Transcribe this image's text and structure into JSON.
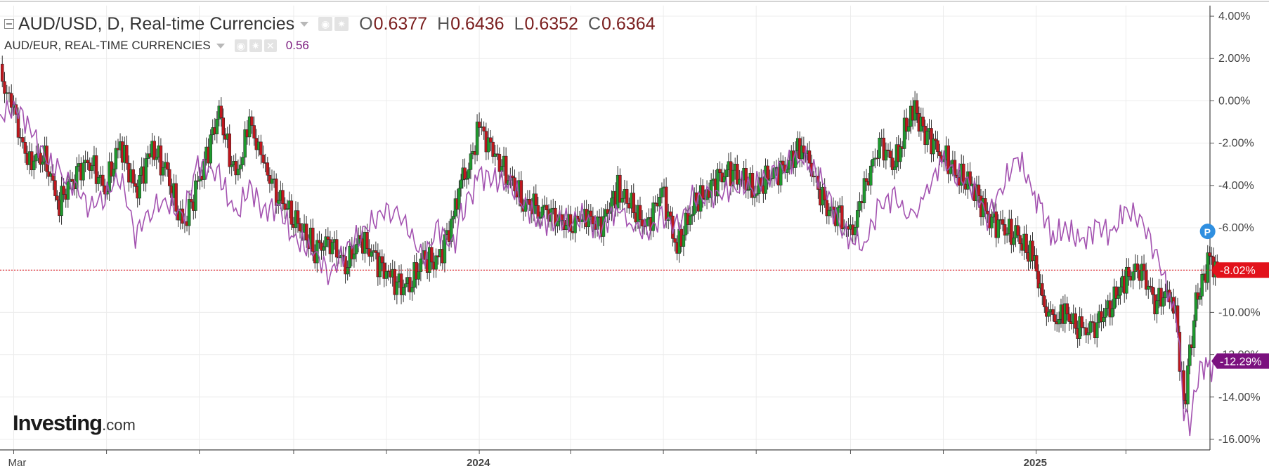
{
  "legend": {
    "main_title": "AUD/USD, D, Real-time Currencies",
    "main_ohlc": [
      {
        "k": "O",
        "v": "0.6377"
      },
      {
        "k": "H",
        "v": "0.6436"
      },
      {
        "k": "L",
        "v": "0.6352"
      },
      {
        "k": "C",
        "v": "0.6364"
      }
    ],
    "compare_title": "AUD/EUR, REAL-TIME CURRENCIES",
    "compare_value": "0.56"
  },
  "logo": {
    "brand": "Investing",
    "suffix": ".com"
  },
  "badges": {
    "price_flag": "P",
    "main_last": "-8.02%",
    "compare_last": "-12.29%"
  },
  "colors": {
    "up": "#1e9a2e",
    "down": "#c0171e",
    "compare_line": "#a352b0",
    "last_main_bg": "#e2121b",
    "last_compare_bg": "#7b117f",
    "flag": "#2f8fe0",
    "grid": "#ececec"
  },
  "chart_data": {
    "type": "candlestick",
    "y_unit": "% change",
    "ylim": [
      -16.5,
      4.5
    ],
    "y_ticks": [
      "4.00%",
      "2.00%",
      "0.00%",
      "-2.00%",
      "-4.00%",
      "-6.00%",
      "-8.00%",
      "-10.00%",
      "-12.00%",
      "-14.00%",
      "-16.00%"
    ],
    "y_tick_values": [
      4,
      2,
      0,
      -2,
      -4,
      -6,
      -8,
      -10,
      -12,
      -14,
      -16
    ],
    "x_range": [
      "2023-02-20",
      "2025-04-16"
    ],
    "x_labels": [
      {
        "date": "2023-03-01",
        "text": "Mar",
        "bold": false
      },
      {
        "date": "2024-01-01",
        "text": "2024",
        "bold": true
      },
      {
        "date": "2025-01-01",
        "text": "2025",
        "bold": true
      }
    ],
    "x_minor_ticks": [
      "2023-05-01",
      "2023-07-01",
      "2023-09-01",
      "2023-11-01",
      "2024-03-01",
      "2024-05-01",
      "2024-07-01",
      "2024-09-01",
      "2024-11-01",
      "2025-03-01"
    ],
    "grid": true,
    "series": [
      {
        "name": "AUD/USD",
        "style": "candles",
        "points": [
          [
            "2023-02-20",
            1.2
          ],
          [
            "2023-03-01",
            -0.5
          ],
          [
            "2023-03-10",
            -3.0
          ],
          [
            "2023-03-20",
            -2.5
          ],
          [
            "2023-03-31",
            -4.8
          ],
          [
            "2023-04-10",
            -3.5
          ],
          [
            "2023-04-20",
            -2.8
          ],
          [
            "2023-04-30",
            -4.2
          ],
          [
            "2023-05-10",
            -2.0
          ],
          [
            "2023-05-20",
            -4.3
          ],
          [
            "2023-05-31",
            -2.2
          ],
          [
            "2023-06-10",
            -3.5
          ],
          [
            "2023-06-20",
            -6.0
          ],
          [
            "2023-06-30",
            -4.0
          ],
          [
            "2023-07-14",
            -0.5
          ],
          [
            "2023-07-25",
            -3.8
          ],
          [
            "2023-08-03",
            -1.0
          ],
          [
            "2023-08-12",
            -3.0
          ],
          [
            "2023-08-22",
            -4.5
          ],
          [
            "2023-09-01",
            -5.5
          ],
          [
            "2023-09-15",
            -7.0
          ],
          [
            "2023-09-25",
            -6.6
          ],
          [
            "2023-10-05",
            -7.8
          ],
          [
            "2023-10-15",
            -6.5
          ],
          [
            "2023-10-25",
            -7.5
          ],
          [
            "2023-11-05",
            -8.5
          ],
          [
            "2023-11-15",
            -8.9
          ],
          [
            "2023-11-25",
            -7.5
          ],
          [
            "2023-12-05",
            -7.6
          ],
          [
            "2023-12-15",
            -5.5
          ],
          [
            "2023-12-20",
            -3.7
          ],
          [
            "2023-12-25",
            -3.2
          ],
          [
            "2024-01-01",
            -1.2
          ],
          [
            "2024-01-10",
            -2.5
          ],
          [
            "2024-01-20",
            -3.5
          ],
          [
            "2024-01-30",
            -4.8
          ],
          [
            "2024-02-10",
            -5.0
          ],
          [
            "2024-02-20",
            -5.5
          ],
          [
            "2024-03-01",
            -6.0
          ],
          [
            "2024-03-10",
            -5.3
          ],
          [
            "2024-03-20",
            -6.0
          ],
          [
            "2024-04-01",
            -4.2
          ],
          [
            "2024-04-10",
            -5.0
          ],
          [
            "2024-04-20",
            -6.0
          ],
          [
            "2024-04-30",
            -4.2
          ],
          [
            "2024-05-10",
            -7.0
          ],
          [
            "2024-05-20",
            -5.0
          ],
          [
            "2024-05-31",
            -4.2
          ],
          [
            "2024-06-10",
            -3.3
          ],
          [
            "2024-06-20",
            -3.5
          ],
          [
            "2024-06-30",
            -4.3
          ],
          [
            "2024-07-10",
            -3.5
          ],
          [
            "2024-07-20",
            -3.2
          ],
          [
            "2024-07-31",
            -2.0
          ],
          [
            "2024-08-05",
            -3.0
          ],
          [
            "2024-08-15",
            -5.0
          ],
          [
            "2024-08-25",
            -5.5
          ],
          [
            "2024-09-01",
            -6.5
          ],
          [
            "2024-09-10",
            -4.2
          ],
          [
            "2024-09-20",
            -2.0
          ],
          [
            "2024-09-30",
            -3.0
          ],
          [
            "2024-10-05",
            -1.8
          ],
          [
            "2024-10-12",
            -0.3
          ],
          [
            "2024-10-20",
            -1.5
          ],
          [
            "2024-10-31",
            -2.5
          ],
          [
            "2024-11-10",
            -3.5
          ],
          [
            "2024-11-20",
            -4.0
          ],
          [
            "2024-11-30",
            -5.5
          ],
          [
            "2024-12-10",
            -6.0
          ],
          [
            "2024-12-20",
            -6.5
          ],
          [
            "2024-12-31",
            -7.5
          ],
          [
            "2025-01-05",
            -9.5
          ],
          [
            "2025-01-12",
            -10.5
          ],
          [
            "2025-01-20",
            -10.0
          ],
          [
            "2025-01-31",
            -11.0
          ],
          [
            "2025-02-10",
            -10.5
          ],
          [
            "2025-02-20",
            -9.5
          ],
          [
            "2025-02-28",
            -8.5
          ],
          [
            "2025-03-10",
            -7.8
          ],
          [
            "2025-03-20",
            -9.5
          ],
          [
            "2025-03-31",
            -9.0
          ],
          [
            "2025-04-04",
            -11.0
          ],
          [
            "2025-04-08",
            -14.5
          ],
          [
            "2025-04-12",
            -12.0
          ],
          [
            "2025-04-16",
            -9.5
          ],
          [
            "2025-04-20",
            -8.5
          ],
          [
            "2025-04-25",
            -7.5
          ],
          [
            "2025-04-30",
            -8.0
          ]
        ]
      },
      {
        "name": "AUD/EUR",
        "style": "line",
        "points": [
          [
            "2023-02-20",
            -0.8
          ],
          [
            "2023-03-01",
            -0.2
          ],
          [
            "2023-03-10",
            -1.0
          ],
          [
            "2023-03-20",
            -2.5
          ],
          [
            "2023-03-31",
            -3.5
          ],
          [
            "2023-04-10",
            -4.0
          ],
          [
            "2023-04-20",
            -5.0
          ],
          [
            "2023-04-30",
            -4.5
          ],
          [
            "2023-05-10",
            -3.5
          ],
          [
            "2023-05-20",
            -6.3
          ],
          [
            "2023-05-31",
            -5.0
          ],
          [
            "2023-06-10",
            -4.8
          ],
          [
            "2023-06-20",
            -5.5
          ],
          [
            "2023-06-30",
            -3.0
          ],
          [
            "2023-07-14",
            -3.5
          ],
          [
            "2023-07-25",
            -5.5
          ],
          [
            "2023-08-03",
            -4.0
          ],
          [
            "2023-08-12",
            -5.2
          ],
          [
            "2023-08-22",
            -5.0
          ],
          [
            "2023-09-01",
            -6.5
          ],
          [
            "2023-09-15",
            -7.2
          ],
          [
            "2023-09-25",
            -8.2
          ],
          [
            "2023-10-05",
            -7.0
          ],
          [
            "2023-10-15",
            -6.3
          ],
          [
            "2023-10-25",
            -5.5
          ],
          [
            "2023-11-05",
            -5.0
          ],
          [
            "2023-11-15",
            -6.0
          ],
          [
            "2023-11-25",
            -7.5
          ],
          [
            "2023-12-05",
            -6.0
          ],
          [
            "2023-12-15",
            -7.0
          ],
          [
            "2023-12-20",
            -5.5
          ],
          [
            "2023-12-25",
            -4.8
          ],
          [
            "2024-01-01",
            -3.5
          ],
          [
            "2024-01-10",
            -3.7
          ],
          [
            "2024-01-20",
            -3.9
          ],
          [
            "2024-01-30",
            -4.8
          ],
          [
            "2024-02-10",
            -5.8
          ],
          [
            "2024-02-20",
            -5.6
          ],
          [
            "2024-03-01",
            -5.7
          ],
          [
            "2024-03-10",
            -5.5
          ],
          [
            "2024-03-20",
            -6.2
          ],
          [
            "2024-04-01",
            -5.0
          ],
          [
            "2024-04-10",
            -5.8
          ],
          [
            "2024-04-20",
            -6.3
          ],
          [
            "2024-04-30",
            -5.5
          ],
          [
            "2024-05-10",
            -6.0
          ],
          [
            "2024-05-20",
            -4.6
          ],
          [
            "2024-05-31",
            -4.6
          ],
          [
            "2024-06-10",
            -4.3
          ],
          [
            "2024-06-20",
            -4.0
          ],
          [
            "2024-06-30",
            -4.0
          ],
          [
            "2024-07-10",
            -3.5
          ],
          [
            "2024-07-20",
            -3.0
          ],
          [
            "2024-07-31",
            -2.6
          ],
          [
            "2024-08-05",
            -3.0
          ],
          [
            "2024-08-15",
            -4.0
          ],
          [
            "2024-08-25",
            -6.0
          ],
          [
            "2024-09-01",
            -6.5
          ],
          [
            "2024-09-10",
            -6.8
          ],
          [
            "2024-09-20",
            -5.0
          ],
          [
            "2024-09-30",
            -4.5
          ],
          [
            "2024-10-05",
            -5.2
          ],
          [
            "2024-10-12",
            -5.6
          ],
          [
            "2024-10-20",
            -4.5
          ],
          [
            "2024-10-31",
            -2.8
          ],
          [
            "2024-11-10",
            -3.5
          ],
          [
            "2024-11-20",
            -4.0
          ],
          [
            "2024-11-30",
            -5.5
          ],
          [
            "2024-12-10",
            -4.0
          ],
          [
            "2024-12-20",
            -2.6
          ],
          [
            "2024-12-31",
            -4.5
          ],
          [
            "2025-01-05",
            -5.2
          ],
          [
            "2025-01-12",
            -6.5
          ],
          [
            "2025-01-20",
            -6.0
          ],
          [
            "2025-01-31",
            -6.7
          ],
          [
            "2025-02-10",
            -5.9
          ],
          [
            "2025-02-20",
            -6.3
          ],
          [
            "2025-02-28",
            -5.2
          ],
          [
            "2025-03-10",
            -5.5
          ],
          [
            "2025-03-20",
            -7.0
          ],
          [
            "2025-03-31",
            -9.5
          ],
          [
            "2025-04-04",
            -10.5
          ],
          [
            "2025-04-08",
            -14.5
          ],
          [
            "2025-04-12",
            -15.3
          ],
          [
            "2025-04-16",
            -13.5
          ],
          [
            "2025-04-20",
            -12.5
          ],
          [
            "2025-04-25",
            -12.7
          ],
          [
            "2025-04-30",
            -12.3
          ]
        ]
      }
    ]
  }
}
